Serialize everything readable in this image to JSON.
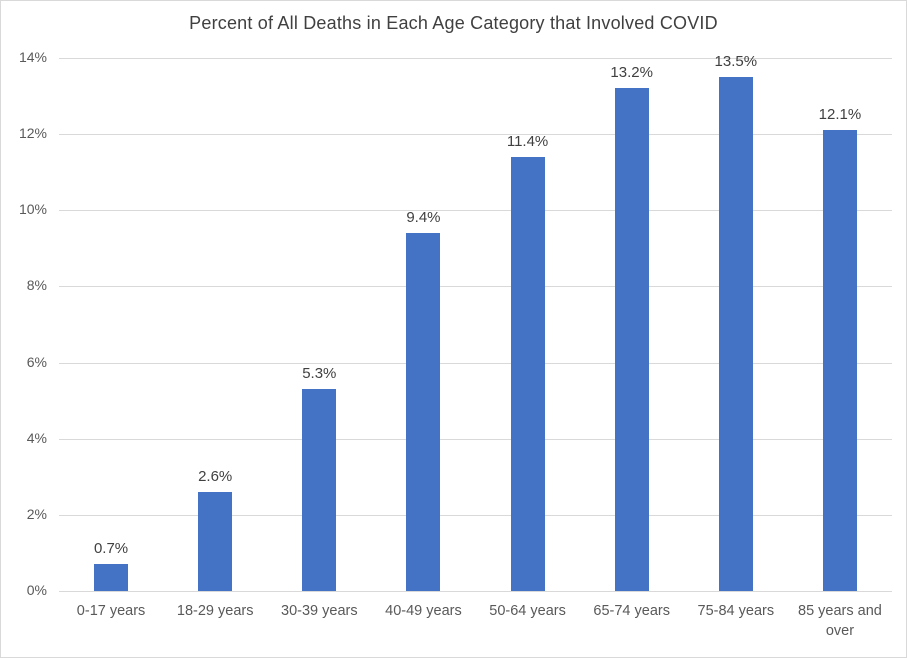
{
  "chart_data": {
    "type": "bar",
    "title": "Percent of All Deaths in Each Age Category that Involved COVID",
    "categories": [
      "0-17 years",
      "18-29 years",
      "30-39 years",
      "40-49 years",
      "50-64 years",
      "65-74 years",
      "75-84 years",
      "85 years and over"
    ],
    "values": [
      0.7,
      2.6,
      5.3,
      9.4,
      11.4,
      13.2,
      13.5,
      12.1
    ],
    "data_labels": [
      "0.7%",
      "2.6%",
      "5.3%",
      "9.4%",
      "11.4%",
      "13.2%",
      "13.5%",
      "12.1%"
    ],
    "xlabel": "",
    "ylabel": "",
    "ylim": [
      0,
      14
    ],
    "ytick_step": 2,
    "ytick_labels": [
      "0%",
      "2%",
      "4%",
      "6%",
      "8%",
      "10%",
      "12%",
      "14%"
    ],
    "grid": true,
    "legend": "none",
    "colors": {
      "bar": "#4472C4",
      "title_text": "#404040",
      "axis_tick_text": "#595959",
      "data_label_text": "#404040",
      "gridline": "#d9d9d9",
      "chart_border": "#d9d9d9",
      "background": "#ffffff"
    }
  }
}
